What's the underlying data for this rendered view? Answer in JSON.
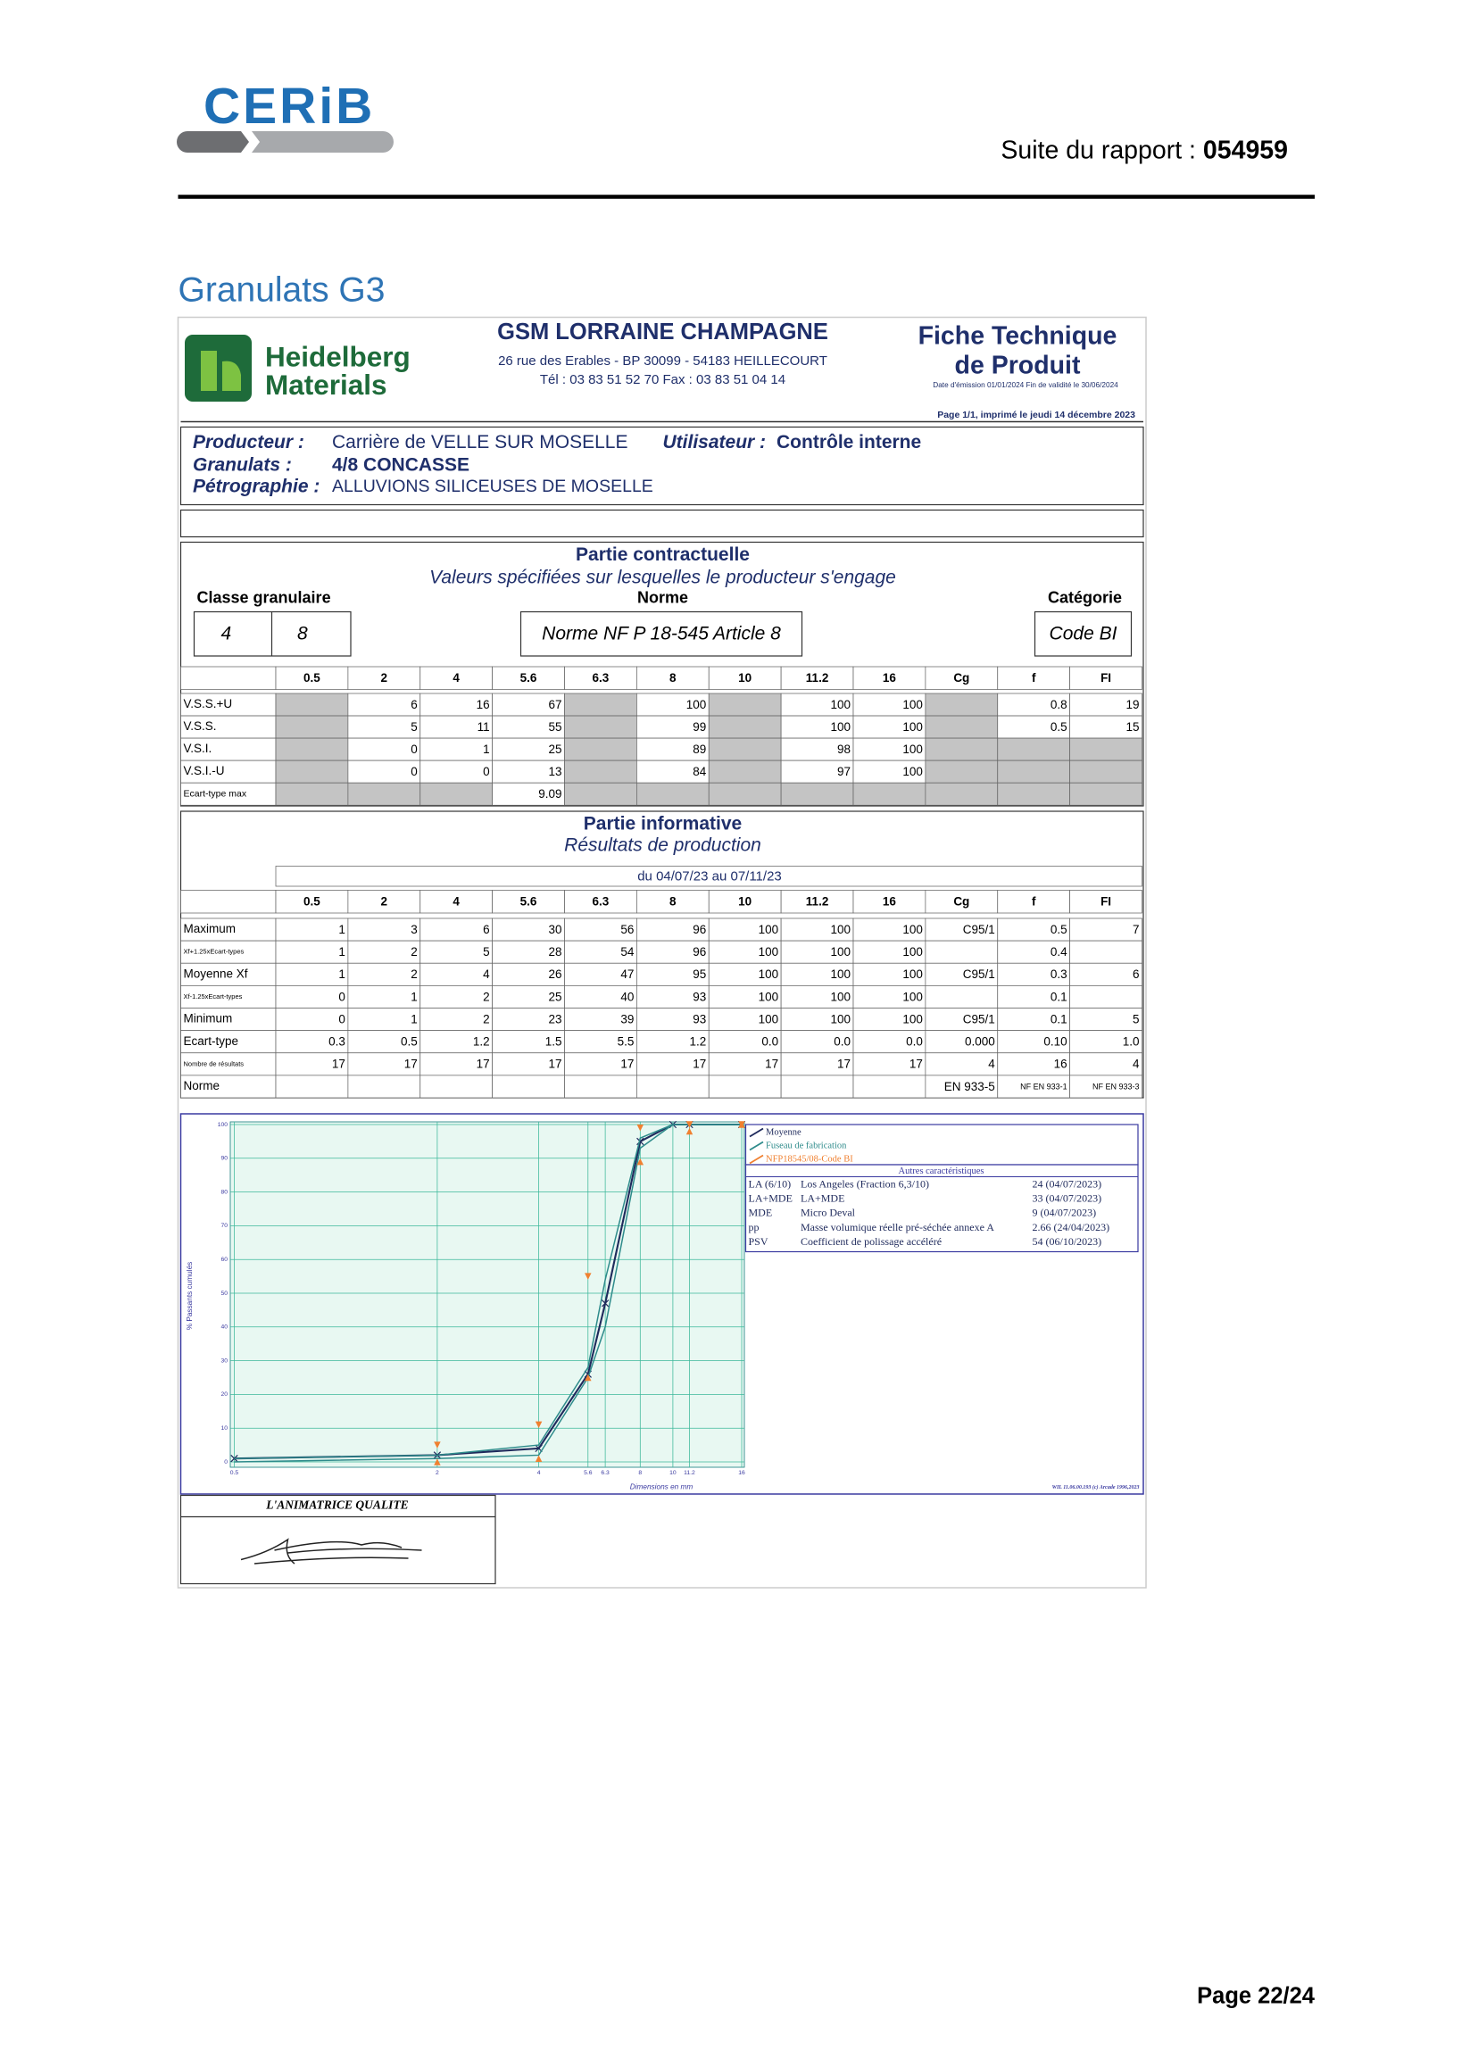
{
  "header": {
    "logo": "CERiB",
    "report_label": "Suite du rapport : ",
    "report_number": "054959"
  },
  "section_title": "Granulats G3",
  "sheet": {
    "brand": [
      "Heidelberg",
      "Materials"
    ],
    "company": "GSM LORRAINE CHAMPAGNE",
    "address": "26 rue des Erables - BP 30099 - 54183 HEILLECOURT",
    "phone": "Tél : 03 83 51 52 70 Fax : 03 83 51 04 14",
    "doc_title": [
      "Fiche Technique",
      "de Produit"
    ],
    "validity": "Date d'émission 01/01/2024  Fin de validité le 30/06/2024",
    "printed": "Page 1/1, imprimé le jeudi 14 décembre 2023",
    "producer": {
      "label": "Producteur :",
      "value": "Carrière de VELLE SUR MOSELLE"
    },
    "user": {
      "label": "Utilisateur :",
      "value": "Contrôle interne"
    },
    "aggregate": {
      "label": "Granulats :",
      "value": "4/8 CONCASSE"
    },
    "petrography": {
      "label": "Pétrographie :",
      "value": "ALLUVIONS SILICEUSES DE MOSELLE"
    }
  },
  "contractual": {
    "title": "Partie contractuelle",
    "subtitle": "Valeurs spécifiées sur lesquelles le producteur s'engage",
    "class_label": "Classe granulaire",
    "class_values": [
      4,
      8
    ],
    "norm_label": "Norme",
    "norm": "Norme NF P 18-545 Article 8",
    "category_label": "Catégorie",
    "category": "Code BI",
    "table": {
      "columns": [
        0.5,
        2,
        4,
        5.6,
        6.3,
        8,
        10,
        11.2,
        16,
        "Cg",
        "f",
        "FI"
      ],
      "rows": [
        {
          "label": "V.S.S.+U",
          "values": [
            null,
            6,
            16,
            67,
            null,
            100,
            null,
            100,
            100,
            null,
            0.8,
            19
          ]
        },
        {
          "label": "V.S.S.",
          "values": [
            null,
            5,
            11,
            55,
            null,
            99,
            null,
            100,
            100,
            null,
            0.5,
            15
          ]
        },
        {
          "label": "V.S.I.",
          "values": [
            null,
            0,
            1,
            25,
            null,
            89,
            null,
            98,
            100,
            null,
            null,
            null
          ]
        },
        {
          "label": "V.S.I.-U",
          "values": [
            null,
            0,
            0,
            13,
            null,
            84,
            null,
            97,
            100,
            null,
            null,
            null
          ]
        },
        {
          "label": "Ecart-type max",
          "values": [
            null,
            null,
            null,
            9.09,
            null,
            null,
            null,
            null,
            null,
            null,
            null,
            null
          ]
        }
      ]
    }
  },
  "informative": {
    "title": "Partie informative",
    "subtitle": "Résultats de production",
    "period": "du 04/07/23 au 07/11/23",
    "table": {
      "columns": [
        0.5,
        2,
        4,
        5.6,
        6.3,
        8,
        10,
        11.2,
        16,
        "Cg",
        "f",
        "FI"
      ],
      "rows": [
        {
          "label": "Maximum",
          "values": [
            1,
            3,
            6,
            30,
            56,
            96,
            100,
            100,
            100,
            "C95/1",
            0.5,
            7
          ]
        },
        {
          "label": "Xf+1.25xEcart-types",
          "values": [
            1,
            2,
            5,
            28,
            54,
            96,
            100,
            100,
            100,
            null,
            0.4,
            null
          ]
        },
        {
          "label": "Moyenne Xf",
          "values": [
            1,
            2,
            4,
            26,
            47,
            95,
            100,
            100,
            100,
            "C95/1",
            0.3,
            6
          ]
        },
        {
          "label": "Xf-1.25xEcart-types",
          "values": [
            0,
            1,
            2,
            25,
            40,
            93,
            100,
            100,
            100,
            null,
            0.1,
            null
          ]
        },
        {
          "label": "Minimum",
          "values": [
            0,
            1,
            2,
            23,
            39,
            93,
            100,
            100,
            100,
            "C95/1",
            0.1,
            5
          ]
        },
        {
          "label": "Ecart-type",
          "values": [
            "0.3",
            "0.5",
            "1.2",
            "1.5",
            "5.5",
            "1.2",
            "0.0",
            "0.0",
            "0.0",
            "0.000",
            "0.10",
            "1.0"
          ]
        },
        {
          "label": "Nombre de résultats",
          "values": [
            17,
            17,
            17,
            17,
            17,
            17,
            17,
            17,
            17,
            4,
            16,
            4
          ]
        },
        {
          "label": "Norme",
          "values": [
            null,
            null,
            null,
            null,
            null,
            null,
            null,
            null,
            null,
            "EN 933-5",
            "NF EN 933-1",
            "NF EN 933-3"
          ]
        }
      ]
    }
  },
  "chart": {
    "type": "line",
    "y_label": "% Passants cumulés",
    "x_label": "Dimensions en mm",
    "x": [
      0.5,
      2,
      4,
      5.6,
      6.3,
      8,
      10,
      11.2,
      16
    ],
    "xlim": [
      0.5,
      16
    ],
    "x_log": true,
    "xticks": [
      0.5,
      2,
      4,
      5.6,
      6.3,
      8,
      10,
      11.2,
      16
    ],
    "ylim": [
      0,
      100
    ],
    "yticks": [
      0,
      10,
      20,
      30,
      40,
      50,
      60,
      70,
      80,
      90,
      100
    ],
    "grid": true,
    "series": [
      {
        "name": "Moyenne",
        "color": "#1f2a5c",
        "values": [
          1,
          2,
          4,
          26,
          47,
          95,
          100,
          100,
          100
        ]
      },
      {
        "name": "Fuseau de fabrication",
        "color": "#2e8b8b",
        "upper": [
          1,
          2,
          5,
          28,
          54,
          96,
          100,
          100,
          100
        ],
        "lower": [
          0,
          1,
          2,
          25,
          40,
          93,
          100,
          100,
          100
        ]
      },
      {
        "name": "NFP18545/08-Code BI",
        "color": "#f08030",
        "style": "points",
        "upper": [
          null,
          5,
          11,
          55,
          null,
          99,
          null,
          100,
          100
        ],
        "lower": [
          null,
          0,
          1,
          25,
          null,
          89,
          null,
          98,
          100
        ]
      }
    ]
  },
  "other_characteristics": {
    "title": "Autres caractéristiques",
    "rows": [
      [
        "LA (6/10)",
        "Los Angeles (Fraction 6,3/10)",
        "24  (04/07/2023)"
      ],
      [
        "LA+MDE",
        "LA+MDE",
        "33  (04/07/2023)"
      ],
      [
        "MDE",
        "Micro Deval",
        "9  (04/07/2023)"
      ],
      [
        "pp",
        "Masse volumique réelle pré-séchée annexe A",
        "2.66  (24/04/2023)"
      ],
      [
        "PSV",
        "Coefficient de polissage accéléré",
        "54  (06/10/2023)"
      ]
    ]
  },
  "signature": {
    "label": "L'ANIMATRICE QUALITE"
  },
  "software": "WIL 11.06.00.193 (c) Arcade 1996,2023",
  "footer": {
    "page": "Page 22/24"
  }
}
